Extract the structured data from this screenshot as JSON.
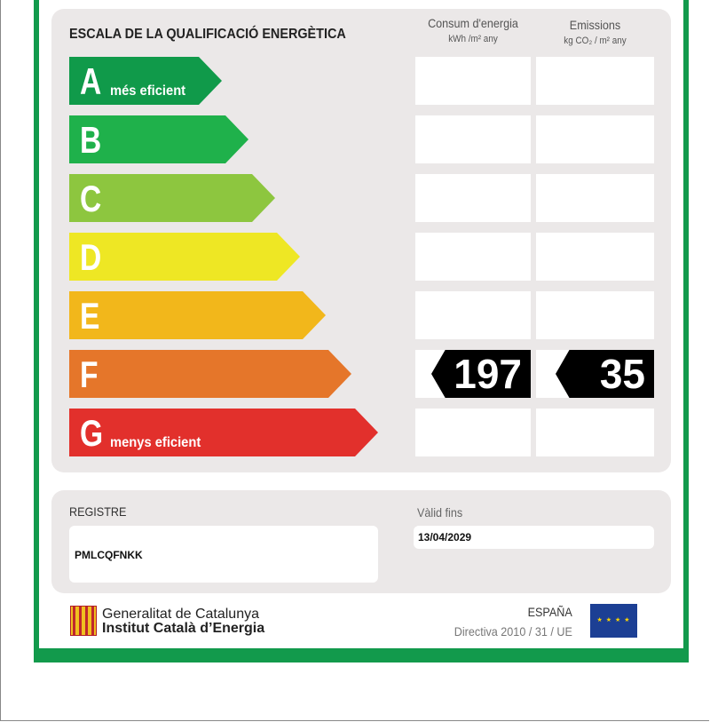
{
  "header": {
    "title": "ESCALA DE LA QUALIFICACIÓ ENERGÈTICA",
    "col1_title": "Consum d'energia",
    "col1_unit": "kWh /m² any",
    "col2_title": "Emissions",
    "col2_unit": "kg CO₂ / m² any"
  },
  "scale": [
    {
      "letter": "A",
      "label": "més eficient",
      "color": "#109a4a"
    },
    {
      "letter": "B",
      "label": "",
      "color": "#1fb14b"
    },
    {
      "letter": "C",
      "label": "",
      "color": "#8dc63f"
    },
    {
      "letter": "D",
      "label": "",
      "color": "#eee724"
    },
    {
      "letter": "E",
      "label": "",
      "color": "#f2b71b"
    },
    {
      "letter": "F",
      "label": "",
      "color": "#e5762a"
    },
    {
      "letter": "G",
      "label": "menys eficient",
      "color": "#e2302c"
    }
  ],
  "rating": {
    "class": "F",
    "consumption": "197",
    "emissions": "35"
  },
  "registry": {
    "label": "REGISTRE",
    "value": "PMLCQFNKK",
    "valid_label": "Vàlid fins",
    "valid_value": "13/04/2029"
  },
  "footer": {
    "org1": "Generalitat de Catalunya",
    "org2": "Institut Català d’Energia",
    "country": "ESPAÑA",
    "directive": "Directiva 2010 / 31 / UE"
  }
}
